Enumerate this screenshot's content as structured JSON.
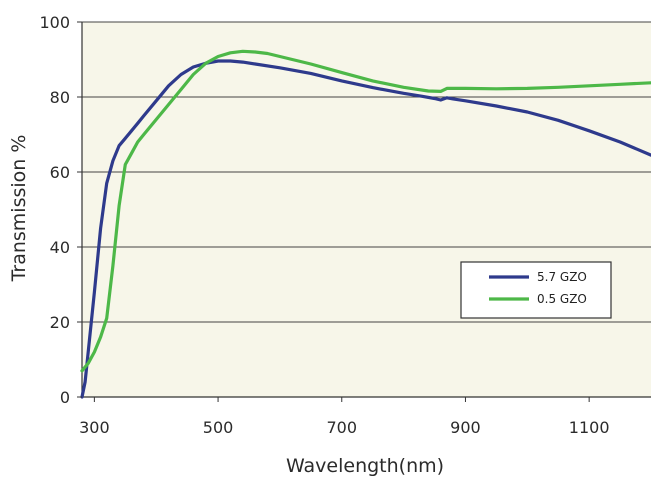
{
  "chart_data": {
    "type": "line",
    "title": "",
    "xlabel": "Wavelength(nm)",
    "ylabel": "Transmission %",
    "xlim": [
      280,
      1200
    ],
    "ylim": [
      0,
      100
    ],
    "x_ticks": [
      300,
      500,
      700,
      900,
      1100
    ],
    "y_ticks": [
      0,
      20,
      40,
      60,
      80,
      100
    ],
    "grid": "horizontal",
    "legend_position": "lower-right",
    "colors": {
      "plot_background": "#f7f6e9",
      "grid": "#444444",
      "axis": "#333333"
    },
    "series": [
      {
        "name": "5.7 GZO",
        "color": "#2e3a8c",
        "points": [
          [
            280,
            0
          ],
          [
            285,
            4
          ],
          [
            290,
            12
          ],
          [
            300,
            28
          ],
          [
            310,
            45
          ],
          [
            320,
            57
          ],
          [
            330,
            63
          ],
          [
            340,
            67
          ],
          [
            350,
            69
          ],
          [
            360,
            71
          ],
          [
            370,
            73
          ],
          [
            380,
            75
          ],
          [
            400,
            79
          ],
          [
            420,
            83
          ],
          [
            440,
            86
          ],
          [
            460,
            88
          ],
          [
            480,
            89
          ],
          [
            500,
            89.6
          ],
          [
            520,
            89.6
          ],
          [
            540,
            89.3
          ],
          [
            560,
            88.8
          ],
          [
            600,
            87.8
          ],
          [
            650,
            86.3
          ],
          [
            700,
            84.3
          ],
          [
            750,
            82.5
          ],
          [
            800,
            81.0
          ],
          [
            830,
            80.2
          ],
          [
            850,
            79.6
          ],
          [
            860,
            79.2
          ],
          [
            870,
            79.8
          ],
          [
            880,
            79.5
          ],
          [
            900,
            79.0
          ],
          [
            950,
            77.6
          ],
          [
            1000,
            76.0
          ],
          [
            1050,
            73.8
          ],
          [
            1100,
            71.0
          ],
          [
            1150,
            68.0
          ],
          [
            1200,
            64.5
          ]
        ]
      },
      {
        "name": "0.5 GZO",
        "color": "#4db848",
        "points": [
          [
            280,
            7
          ],
          [
            290,
            9
          ],
          [
            300,
            12
          ],
          [
            310,
            16
          ],
          [
            320,
            21
          ],
          [
            330,
            35
          ],
          [
            340,
            51
          ],
          [
            350,
            62
          ],
          [
            360,
            65
          ],
          [
            370,
            68
          ],
          [
            380,
            70
          ],
          [
            400,
            74
          ],
          [
            420,
            78
          ],
          [
            440,
            82
          ],
          [
            460,
            86
          ],
          [
            480,
            89
          ],
          [
            500,
            90.8
          ],
          [
            520,
            91.8
          ],
          [
            540,
            92.2
          ],
          [
            560,
            92.0
          ],
          [
            580,
            91.6
          ],
          [
            600,
            90.8
          ],
          [
            650,
            88.8
          ],
          [
            700,
            86.5
          ],
          [
            750,
            84.3
          ],
          [
            800,
            82.6
          ],
          [
            840,
            81.6
          ],
          [
            860,
            81.5
          ],
          [
            870,
            82.3
          ],
          [
            900,
            82.3
          ],
          [
            950,
            82.2
          ],
          [
            1000,
            82.3
          ],
          [
            1050,
            82.6
          ],
          [
            1100,
            83.0
          ],
          [
            1150,
            83.4
          ],
          [
            1200,
            83.8
          ]
        ]
      }
    ]
  }
}
